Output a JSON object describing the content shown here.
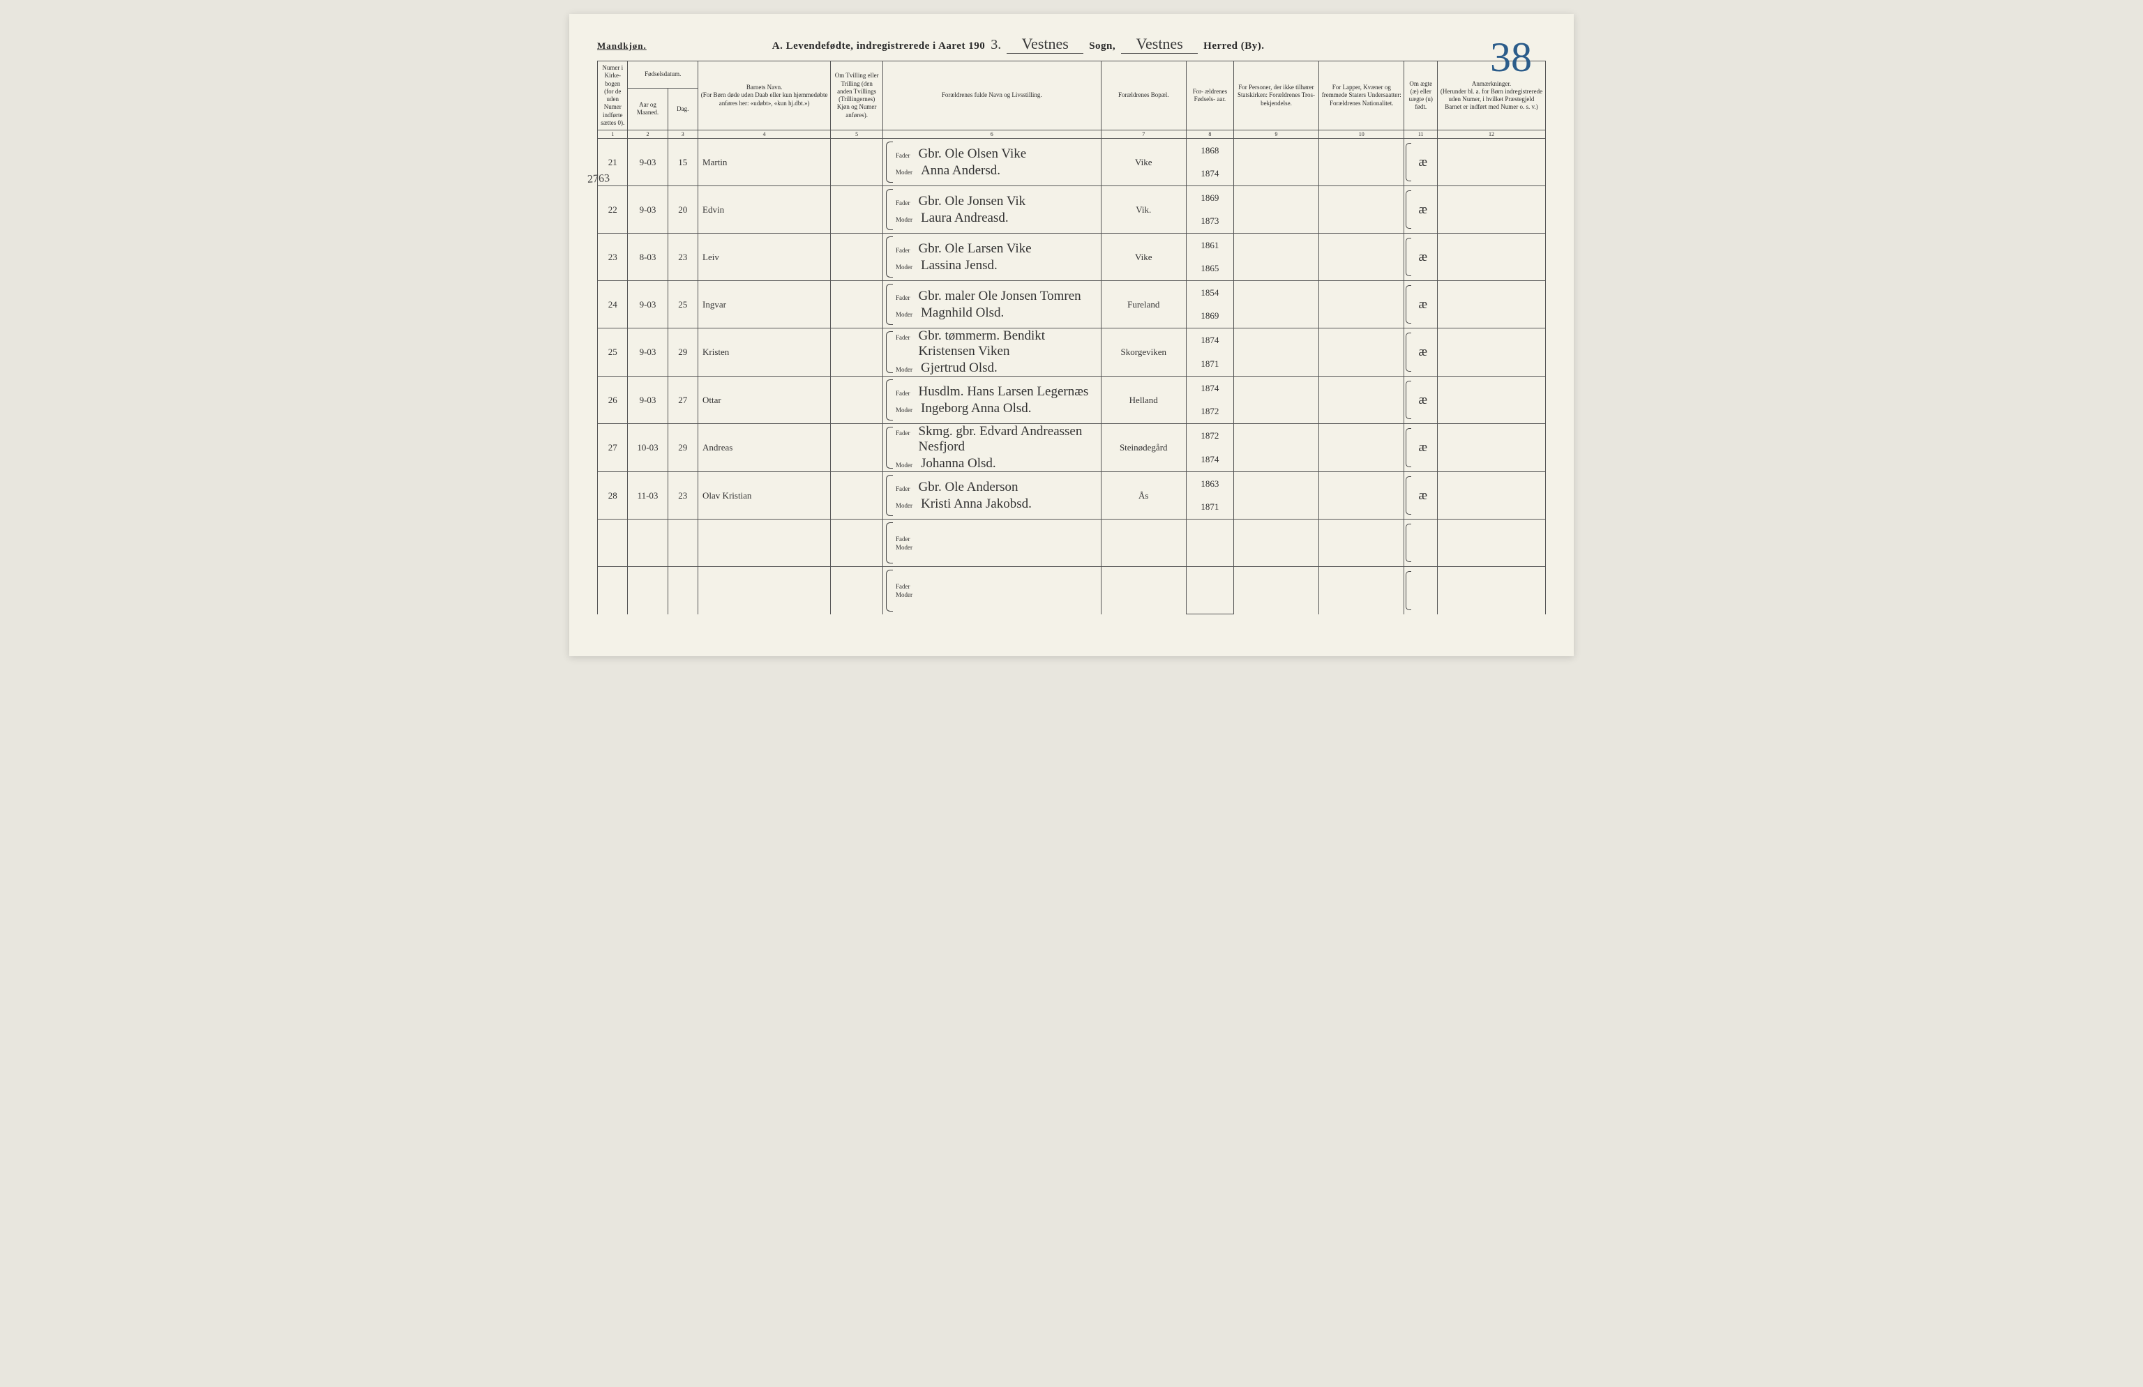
{
  "header": {
    "gender_label": "Mandkjøn.",
    "title_prefix": "A.  Levendefødte, indregistrerede i Aaret 190",
    "year_suffix": "3.",
    "sogn_value": "Vestnes",
    "sogn_label": "Sogn,",
    "herred_value": "Vestnes",
    "herred_label": "Herred (By).",
    "page_number": "38",
    "margin_note": "2763"
  },
  "columns": {
    "c1": "Numer i Kirke- bogen (for de uden Numer indførte sættes 0).",
    "c2a": "Fødselsdatum.",
    "c2": "Aar og Maaned.",
    "c3": "Dag.",
    "c4": "Barnets Navn.\n(For Børn døde uden Daab eller kun hjemmedøbte anføres her: «udøbt», «kun hj.dbt.»)",
    "c5": "Om Tvilling eller Trilling (den anden Tvillings (Trillingernes) Kjøn og Numer anføres).",
    "c6": "Forældrenes fulde Navn og Livsstilling.",
    "c7": "Forældrenes Bopæl.",
    "c8": "For- ældrenes Fødsels- aar.",
    "c9": "For Personer, der ikke tilhører Statskirken: Forældrenes Tros- bekjendelse.",
    "c10": "For Lapper, Kvæner og fremmede Staters Undersaatter: Forældrenes Nationalitet.",
    "c11": "Om ægte (æ) eller uægte (u) født.",
    "c12": "Anmærkninger.\n(Herunder bl. a. for Børn indregistrerede uden Numer, i hvilket Præstegjeld Barnet er indført med Numer o. s. v.)"
  },
  "colnums": [
    "1",
    "2",
    "3",
    "4",
    "5",
    "6",
    "7",
    "8",
    "9",
    "10",
    "11",
    "12"
  ],
  "parent_labels": {
    "father": "Fader",
    "mother": "Moder"
  },
  "rows": [
    {
      "num": "21",
      "ym": "9-03",
      "day": "15",
      "name": "Martin",
      "father": "Gbr. Ole Olsen Vike",
      "mother": "Anna Andersd.",
      "bopæl": "Vike",
      "fy": "1868",
      "my": "1874",
      "legit": "æ"
    },
    {
      "num": "22",
      "ym": "9-03",
      "day": "20",
      "name": "Edvin",
      "father": "Gbr. Ole Jonsen Vik",
      "mother": "Laura Andreasd.",
      "bopæl": "Vik.",
      "fy": "1869",
      "my": "1873",
      "legit": "æ"
    },
    {
      "num": "23",
      "ym": "8-03",
      "day": "23",
      "name": "Leiv",
      "father": "Gbr. Ole Larsen Vike",
      "mother": "Lassina Jensd.",
      "bopæl": "Vike",
      "fy": "1861",
      "my": "1865",
      "legit": "æ"
    },
    {
      "num": "24",
      "ym": "9-03",
      "day": "25",
      "name": "Ingvar",
      "father": "Gbr. maler Ole Jonsen Tomren",
      "mother": "Magnhild Olsd.",
      "bopæl": "Fureland",
      "fy": "1854",
      "my": "1869",
      "legit": "æ"
    },
    {
      "num": "25",
      "ym": "9-03",
      "day": "29",
      "name": "Kristen",
      "father": "Gbr. tømmerm. Bendikt Kristensen Viken",
      "mother": "Gjertrud Olsd.",
      "bopæl": "Skorgeviken",
      "fy": "1874",
      "my": "1871",
      "legit": "æ"
    },
    {
      "num": "26",
      "ym": "9-03",
      "day": "27",
      "name": "Ottar",
      "father": "Husdlm. Hans Larsen Legernæs",
      "mother": "Ingeborg Anna Olsd.",
      "bopæl": "Helland",
      "fy": "1874",
      "my": "1872",
      "legit": "æ"
    },
    {
      "num": "27",
      "ym": "10-03",
      "day": "29",
      "name": "Andreas",
      "father": "Skmg. gbr. Edvard Andreassen Nesfjord",
      "mother": "Johanna Olsd.",
      "bopæl": "Steinødegård",
      "fy": "1872",
      "my": "1874",
      "legit": "æ"
    },
    {
      "num": "28",
      "ym": "11-03",
      "day": "23",
      "name": "Olav Kristian",
      "father": "Gbr. Ole Anderson",
      "mother": "Kristi Anna Jakobsd.",
      "bopæl": "Ås",
      "fy": "1863",
      "my": "1871",
      "legit": "æ"
    },
    {
      "num": "",
      "ym": "",
      "day": "",
      "name": "",
      "father": "",
      "mother": "",
      "bopæl": "",
      "fy": "",
      "my": "",
      "legit": ""
    },
    {
      "num": "",
      "ym": "",
      "day": "",
      "name": "",
      "father": "",
      "mother": "",
      "bopæl": "",
      "fy": "",
      "my": "",
      "legit": ""
    }
  ]
}
